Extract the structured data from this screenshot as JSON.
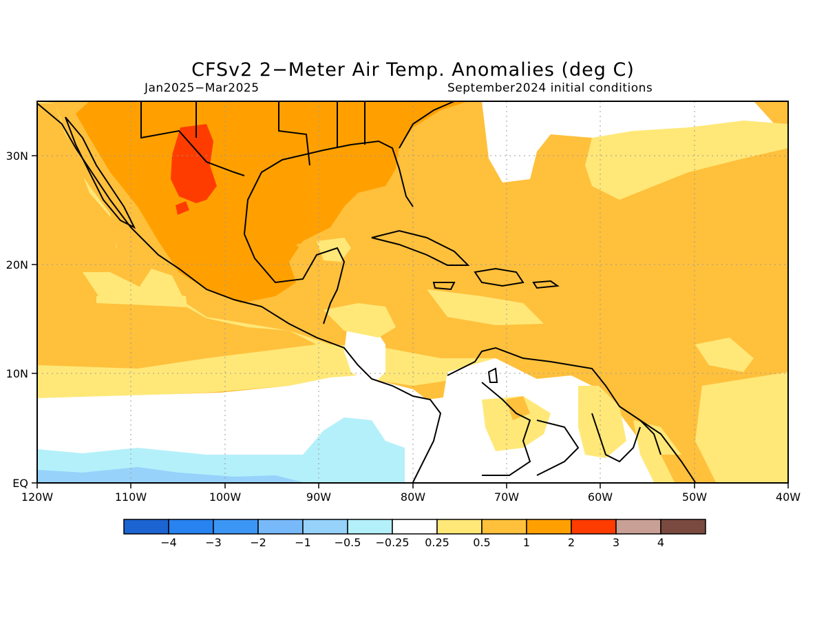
{
  "title": "CFSv2 2−Meter Air Temp. Anomalies (deg C)",
  "period": "Jan2025−Mar2025",
  "initial_conditions": "September2024 initial conditions",
  "map": {
    "lon_labels": [
      "120W",
      "110W",
      "100W",
      "90W",
      "80W",
      "70W",
      "60W",
      "50W",
      "40W"
    ],
    "lat_labels": [
      "EQ",
      "10N",
      "20N",
      "30N"
    ],
    "gridlines": true
  },
  "colorbar": {
    "labels": [
      "−4",
      "−3",
      "−2",
      "−1",
      "−0.5",
      "−0.25",
      "0.25",
      "0.5",
      "1",
      "2",
      "3",
      "4"
    ],
    "colors": [
      "#1c64d2",
      "#2882f0",
      "#3c96f5",
      "#78b9fa",
      "#96d2fa",
      "#b4f0fa",
      "#ffffff",
      "#ffe878",
      "#ffc03c",
      "#ffa000",
      "#ff3c00",
      "#c8a096",
      "#7a4a40"
    ]
  }
}
